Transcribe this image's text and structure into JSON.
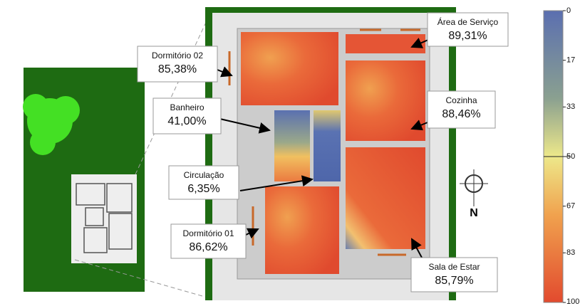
{
  "rooms": [
    {
      "name": "Dormitório 02",
      "value": "85,38%"
    },
    {
      "name": "Banheiro",
      "value": "41,00%"
    },
    {
      "name": "Circulação",
      "value": "6,35%"
    },
    {
      "name": "Dormitório 01",
      "value": "86,62%"
    },
    {
      "name": "Área de Serviço",
      "value": "89,31%"
    },
    {
      "name": "Cozinha",
      "value": "88,46%"
    },
    {
      "name": "Sala de Estar",
      "value": "85,79%"
    }
  ],
  "compass": {
    "label": "N"
  },
  "scale": {
    "ticks": [
      0,
      17,
      33,
      50,
      67,
      83,
      100
    ]
  }
}
